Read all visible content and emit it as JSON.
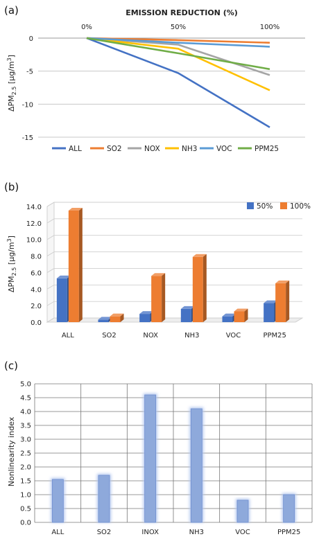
{
  "chart_data": [
    {
      "panel": "(a)",
      "type": "line",
      "title": "EMISSION REDUCTION (%)",
      "ylabel": "ΔPM2.5 [μg/m3]",
      "ylabel_parts": {
        "delta": "ΔPM",
        "sub": "2.5",
        "unit": " [μg/m",
        "sup": "3",
        "close": "]"
      },
      "x": [
        "0%",
        "50%",
        "100%"
      ],
      "x_values": [
        0,
        50,
        100
      ],
      "ylim": [
        -15,
        0
      ],
      "yticks": [
        0,
        -5,
        -10,
        -15
      ],
      "ytick_labels": [
        "0",
        "-5",
        "-10",
        "-15"
      ],
      "grid": true,
      "legend_position": "bottom",
      "series": [
        {
          "name": "ALL",
          "color": "#4472C4",
          "values": [
            0,
            -5.3,
            -13.5
          ]
        },
        {
          "name": "SO2",
          "color": "#ED7D31",
          "values": [
            0,
            -0.3,
            -0.7
          ]
        },
        {
          "name": "NOX",
          "color": "#A5A5A5",
          "values": [
            0,
            -1.0,
            -5.6
          ]
        },
        {
          "name": "NH3",
          "color": "#FFC000",
          "values": [
            0,
            -1.6,
            -7.9
          ]
        },
        {
          "name": "VOC",
          "color": "#5B9BD5",
          "values": [
            0,
            -0.7,
            -1.3
          ]
        },
        {
          "name": "PPM25",
          "color": "#70AD47",
          "values": [
            0,
            -2.3,
            -4.7
          ]
        }
      ]
    },
    {
      "panel": "(b)",
      "type": "bar",
      "ylabel": "ΔPM2.5 [μg/m3]",
      "ylabel_parts": {
        "delta": "ΔPM",
        "sub": "2.5",
        "unit": " [μg/m",
        "sup": "3",
        "close": "]"
      },
      "categories": [
        "ALL",
        "SO2",
        "NOX",
        "NH3",
        "VOC",
        "PPM25"
      ],
      "ylim": [
        0,
        14
      ],
      "yticks": [
        0,
        2,
        4,
        6,
        8,
        10,
        12,
        14
      ],
      "ytick_labels": [
        "0.0",
        "2.0",
        "4.0",
        "6.0",
        "8.0",
        "10.0",
        "12.0",
        "14.0"
      ],
      "grid": true,
      "legend_position": "top-right",
      "series": [
        {
          "name": "50%",
          "color": "#4472C4",
          "values": [
            5.3,
            0.3,
            1.0,
            1.6,
            0.7,
            2.3
          ]
        },
        {
          "name": "100%",
          "color": "#ED7D31",
          "values": [
            13.5,
            0.7,
            5.6,
            7.9,
            1.3,
            4.7
          ]
        }
      ]
    },
    {
      "panel": "(c)",
      "type": "bar",
      "ylabel": "Nonlinearity index",
      "categories": [
        "ALL",
        "SO2",
        "INOX",
        "NH3",
        "VOC",
        "PPM25"
      ],
      "values": [
        1.55,
        1.7,
        4.6,
        4.1,
        0.8,
        1.0
      ],
      "ylim": [
        0,
        5
      ],
      "yticks": [
        0,
        0.5,
        1,
        1.5,
        2,
        2.5,
        3,
        3.5,
        4,
        4.5,
        5
      ],
      "ytick_labels": [
        "0.0",
        "0.5",
        "1.0",
        "1.5",
        "2.0",
        "2.5",
        "3.0",
        "3.5",
        "4.0",
        "4.5",
        "5.0"
      ],
      "grid": true,
      "color": "#8EA9DB"
    }
  ]
}
